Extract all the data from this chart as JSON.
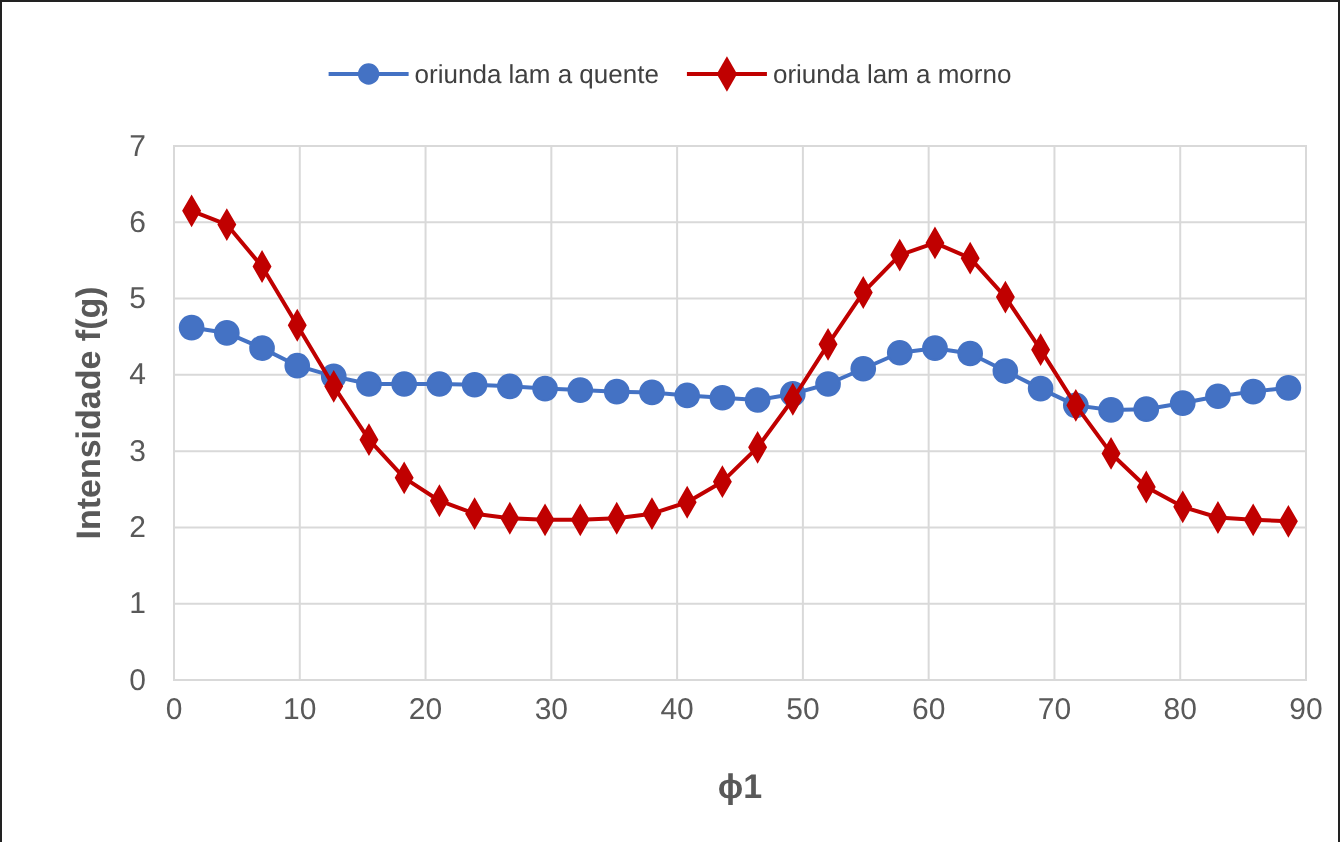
{
  "chart_data": {
    "type": "line",
    "xlabel": "ϕ1",
    "ylabel": "Intensidade f(g)",
    "x": [
      1.4,
      4.2,
      7.0,
      9.8,
      12.7,
      15.5,
      18.3,
      21.1,
      23.9,
      26.7,
      29.5,
      32.3,
      35.2,
      38.0,
      40.8,
      43.6,
      46.4,
      49.2,
      52.0,
      54.8,
      57.7,
      60.5,
      63.3,
      66.1,
      68.9,
      71.7,
      74.5,
      77.3,
      80.2,
      83.0,
      85.8,
      88.6
    ],
    "series": [
      {
        "name": "oriunda lam a quente",
        "color": "#4472c4",
        "marker": "circle",
        "values": [
          4.62,
          4.55,
          4.35,
          4.12,
          3.98,
          3.88,
          3.88,
          3.88,
          3.87,
          3.85,
          3.82,
          3.8,
          3.78,
          3.77,
          3.73,
          3.7,
          3.67,
          3.75,
          3.88,
          4.08,
          4.29,
          4.35,
          4.28,
          4.05,
          3.82,
          3.6,
          3.54,
          3.55,
          3.63,
          3.72,
          3.78,
          3.83
        ]
      },
      {
        "name": "oriunda lam a morno",
        "color": "#c00000",
        "marker": "diamond",
        "values": [
          6.15,
          5.97,
          5.42,
          4.65,
          3.85,
          3.15,
          2.65,
          2.35,
          2.18,
          2.12,
          2.1,
          2.1,
          2.12,
          2.18,
          2.33,
          2.6,
          3.05,
          3.68,
          4.4,
          5.08,
          5.57,
          5.73,
          5.53,
          5.02,
          4.33,
          3.6,
          2.97,
          2.53,
          2.27,
          2.13,
          2.1,
          2.08
        ]
      }
    ],
    "xlim": [
      0,
      90
    ],
    "xticks": [
      0,
      10,
      20,
      30,
      40,
      50,
      60,
      70,
      80,
      90
    ],
    "ylim": [
      0,
      7
    ],
    "yticks": [
      0,
      1,
      2,
      3,
      4,
      5,
      6,
      7
    ],
    "grid": true,
    "legend": "top",
    "line_style": "solid"
  }
}
